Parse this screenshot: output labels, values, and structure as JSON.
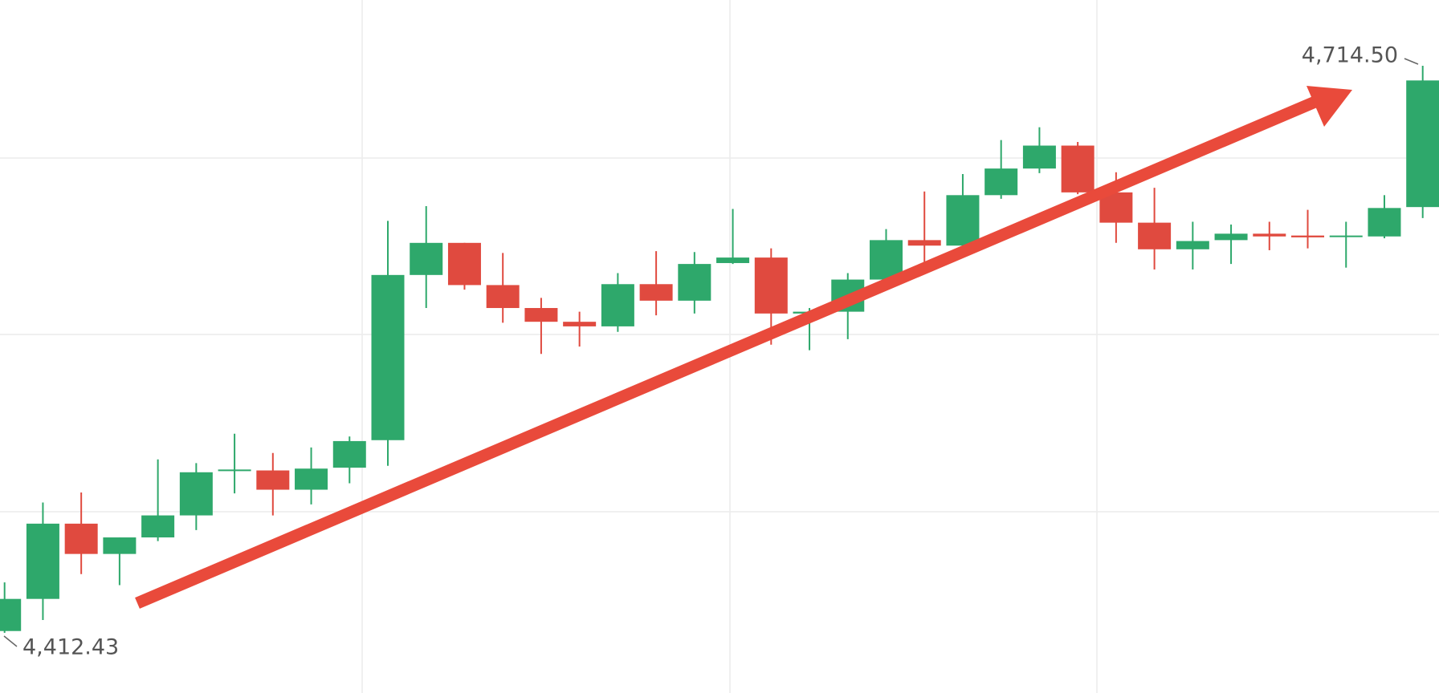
{
  "chart_data": {
    "type": "candlestick",
    "up_color": "#2ea86b",
    "down_color": "#e04a3f",
    "open": [
      4413.4,
      4430.51,
      4470.59,
      4454.46,
      4463.26,
      4474.99,
      4498.94,
      4498.94,
      4488.68,
      4500.41,
      4515.07,
      4603.06,
      4620.16,
      4597.68,
      4585.46,
      4578.13,
      4575.68,
      4598.17,
      4589.37,
      4609.41,
      4612.34,
      4582.53,
      4583.5,
      4600.61,
      4621.63,
      4618.7,
      4645.58,
      4659.76,
      4671.98,
      4647.05,
      4630.92,
      4616.74,
      4621.63,
      4625.05,
      4624.07,
      4623.59,
      4623.59,
      4639.23
    ],
    "high": [
      4439.31,
      4481.84,
      4487.21,
      4463.26,
      4504.81,
      4502.85,
      4518.5,
      4508.23,
      4511.16,
      4517.03,
      4631.89,
      4639.71,
      4620.16,
      4614.79,
      4590.84,
      4583.5,
      4604.03,
      4615.76,
      4615.28,
      4638.25,
      4617.23,
      4585.46,
      4604.03,
      4627.5,
      4647.54,
      4656.82,
      4674.91,
      4681.75,
      4673.93,
      4657.8,
      4649.49,
      4631.41,
      4629.94,
      4631.41,
      4637.76,
      4631.41,
      4645.58,
      4714.5
    ],
    "low": [
      4412.43,
      4419.27,
      4443.71,
      4437.84,
      4461.31,
      4467.17,
      4486.72,
      4474.99,
      4480.86,
      4492.1,
      4501.39,
      4585.46,
      4595.24,
      4577.64,
      4561.02,
      4564.93,
      4572.75,
      4581.55,
      4582.53,
      4608.92,
      4565.91,
      4562.98,
      4568.84,
      4598.17,
      4608.92,
      4617.72,
      4643.63,
      4657.31,
      4646.07,
      4620.16,
      4605.99,
      4605.99,
      4608.92,
      4616.25,
      4617.23,
      4606.97,
      4622.61,
      4633.36
    ],
    "close": [
      4430.51,
      4470.59,
      4454.46,
      4463.26,
      4474.99,
      4497.97,
      4499.43,
      4488.68,
      4499.92,
      4514.58,
      4603.06,
      4620.16,
      4597.68,
      4585.46,
      4578.13,
      4575.68,
      4598.17,
      4589.37,
      4608.92,
      4612.34,
      4582.53,
      4583.5,
      4600.61,
      4621.63,
      4618.7,
      4645.58,
      4659.76,
      4671.98,
      4647.05,
      4630.92,
      4616.74,
      4621.14,
      4625.05,
      4623.59,
      4623.1,
      4624.07,
      4638.74,
      4706.68
    ],
    "high_label": {
      "value": 4714.5,
      "label": "4,714.50"
    },
    "low_label": {
      "value": 4412.43,
      "label": "4,412.43"
    }
  }
}
